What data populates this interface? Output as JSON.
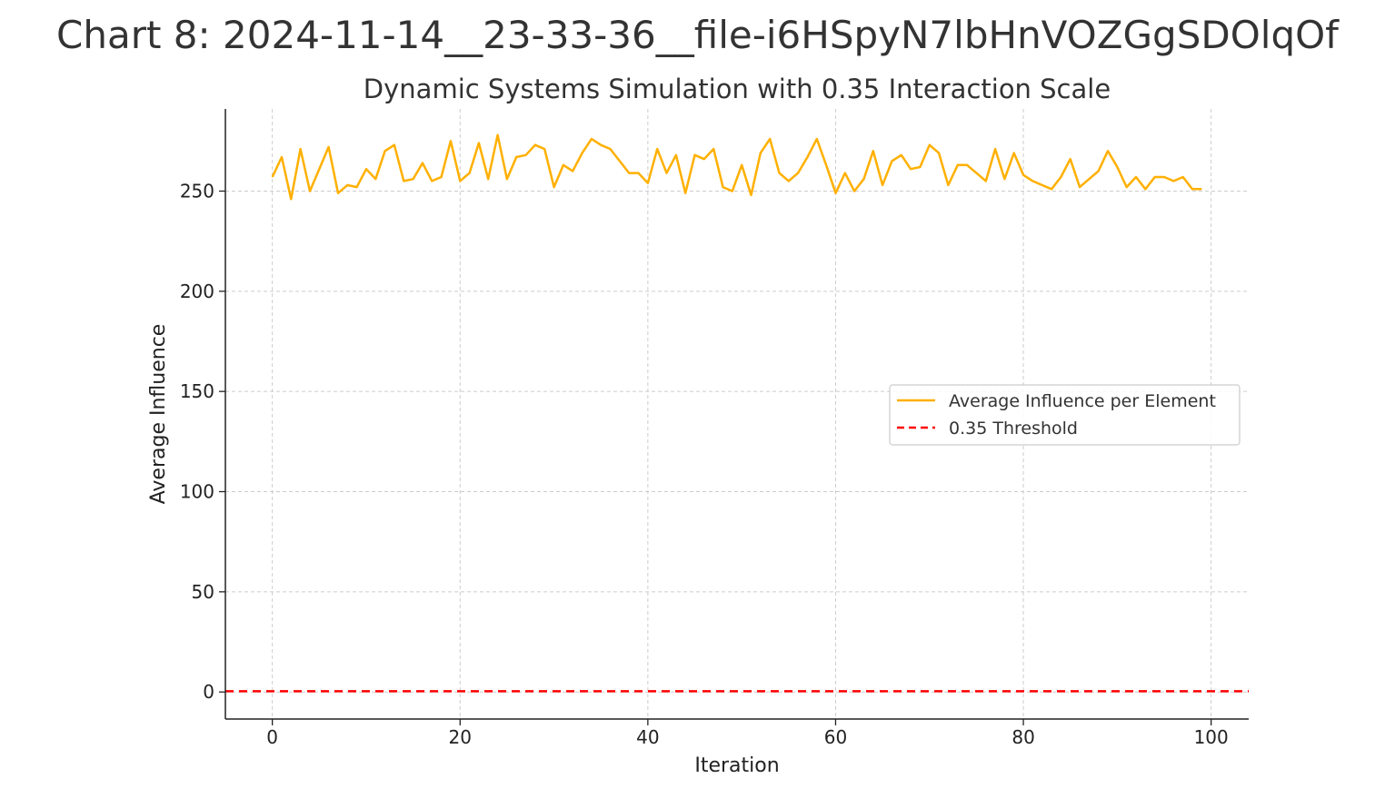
{
  "page_title": "Chart 8: 2024-11-14__23-33-36__file-i6HSpyN7lbHnVOZGgSDOlqOf",
  "colors": {
    "series_line": "#FFB000",
    "threshold_line": "#FF0000",
    "grid": "#cccccc",
    "axis": "#222222"
  },
  "chart_data": {
    "type": "line",
    "title": "Dynamic Systems Simulation with 0.35 Interaction Scale",
    "xlabel": "Iteration",
    "ylabel": "Average Influence",
    "xlim": [
      -5,
      104
    ],
    "ylim": [
      -13.5,
      291
    ],
    "xticks": [
      0,
      20,
      40,
      60,
      80,
      100
    ],
    "yticks": [
      0,
      50,
      100,
      150,
      200,
      250
    ],
    "grid": true,
    "legend_position": "center-right",
    "series": [
      {
        "name": "Average Influence per Element",
        "style": "solid",
        "x": [
          0,
          1,
          2,
          3,
          4,
          5,
          6,
          7,
          8,
          9,
          10,
          11,
          12,
          13,
          14,
          15,
          16,
          17,
          18,
          19,
          20,
          21,
          22,
          23,
          24,
          25,
          26,
          27,
          28,
          29,
          30,
          31,
          32,
          33,
          34,
          35,
          36,
          37,
          38,
          39,
          40,
          41,
          42,
          43,
          44,
          45,
          46,
          47,
          48,
          49,
          50,
          51,
          52,
          53,
          54,
          55,
          56,
          57,
          58,
          59,
          60,
          61,
          62,
          63,
          64,
          65,
          66,
          67,
          68,
          69,
          70,
          71,
          72,
          73,
          74,
          75,
          76,
          77,
          78,
          79,
          80,
          81,
          82,
          83,
          84,
          85,
          86,
          87,
          88,
          89,
          90,
          91,
          92,
          93,
          94,
          95,
          96,
          97,
          98,
          99
        ],
        "values": [
          257,
          267,
          246,
          271,
          250,
          261,
          272,
          249,
          253,
          252,
          261,
          256,
          270,
          273,
          255,
          256,
          264,
          255,
          257,
          275,
          255,
          259,
          274,
          256,
          278,
          256,
          267,
          268,
          273,
          271,
          252,
          263,
          260,
          269,
          276,
          273,
          271,
          265,
          259,
          259,
          254,
          271,
          259,
          268,
          249,
          268,
          266,
          271,
          252,
          250,
          263,
          248,
          269,
          276,
          259,
          255,
          259,
          267,
          276,
          263,
          249,
          259,
          250,
          256,
          270,
          253,
          265,
          268,
          261,
          262,
          273,
          269,
          253,
          263,
          263,
          259,
          255,
          271,
          256,
          269,
          258,
          255,
          253,
          251,
          257,
          266,
          252,
          256,
          260,
          270,
          262,
          252,
          257,
          251,
          257,
          257,
          255,
          257,
          251,
          251
        ]
      },
      {
        "name": "0.35 Threshold",
        "style": "dashed",
        "x": [
          -5,
          104
        ],
        "values": [
          0.35,
          0.35
        ]
      }
    ]
  }
}
